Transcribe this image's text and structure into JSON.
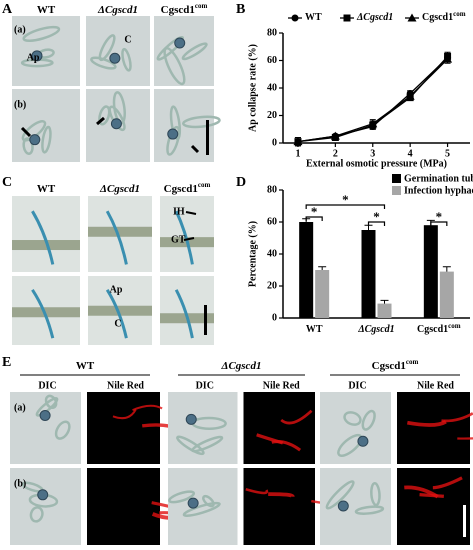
{
  "panel_labels": [
    "A",
    "B",
    "C",
    "D",
    "E"
  ],
  "panel_a": {
    "columns": [
      {
        "text": "WT"
      },
      {
        "text": "ΔCgscd1"
      },
      {
        "text": "Cgscd1",
        "sup": "com"
      }
    ],
    "rows": [
      "(a)",
      "(b)"
    ],
    "annotations": [
      "Ap",
      "C"
    ]
  },
  "panel_c": {
    "columns": [
      {
        "text": "WT"
      },
      {
        "text": "ΔCgscd1"
      },
      {
        "text": "Cgscd1",
        "sup": "com"
      }
    ],
    "annotations": [
      "IH",
      "GT",
      "Ap",
      "C"
    ]
  },
  "panel_e": {
    "columns": [
      {
        "text": "WT"
      },
      {
        "text": "ΔCgscd1"
      },
      {
        "text": "Cgscd1",
        "sup": "com"
      }
    ],
    "subheaders": [
      "DIC",
      "Nile Red"
    ],
    "rows": [
      "(a)",
      "(b)"
    ]
  },
  "chart_data": [
    {
      "type": "line",
      "ylabel": "Ap collapse rate (%)",
      "xlabel": "External osmotic pressure (MPa)",
      "x": [
        1,
        2,
        3,
        4,
        5
      ],
      "xlim": [
        0.6,
        5.6
      ],
      "xticks": [
        1,
        2,
        3,
        4,
        5
      ],
      "ylim": [
        0,
        80
      ],
      "yticks": [
        0,
        20,
        40,
        60,
        80
      ],
      "series": [
        {
          "name": "WT",
          "marker": "circle",
          "color": "#000000",
          "values": [
            1,
            5,
            12,
            36,
            62
          ],
          "errors": [
            3,
            1,
            2,
            2,
            3
          ]
        },
        {
          "name": "ΔCgscd1",
          "marker": "square",
          "color": "#000000",
          "values": [
            1,
            4,
            13,
            33,
            63
          ],
          "errors": [
            3,
            1,
            3,
            2,
            3
          ]
        },
        {
          "name": "Cgscd1",
          "name_sup": "com",
          "marker": "triangle",
          "color": "#000000",
          "values": [
            1,
            5,
            14,
            34,
            61
          ],
          "errors": [
            3,
            1,
            3,
            2,
            3
          ]
        }
      ]
    },
    {
      "type": "bar",
      "ylabel": "Percentage (%)",
      "categories": [
        "WT",
        "ΔCgscd1",
        "Cgscd1"
      ],
      "category_sup": [
        null,
        null,
        "com"
      ],
      "ylim": [
        0,
        80
      ],
      "yticks": [
        0,
        20,
        40,
        60,
        80
      ],
      "series": [
        {
          "name": "Germination tube",
          "color": "#000000",
          "values": [
            60,
            55,
            58
          ],
          "errors": [
            2,
            3,
            3
          ]
        },
        {
          "name": "Infection hyphae",
          "color": "#a6a6a6",
          "values": [
            30,
            9,
            29
          ],
          "errors": [
            2,
            2,
            3
          ]
        }
      ],
      "annotations": [
        "*",
        "*",
        "*",
        "*"
      ]
    }
  ]
}
